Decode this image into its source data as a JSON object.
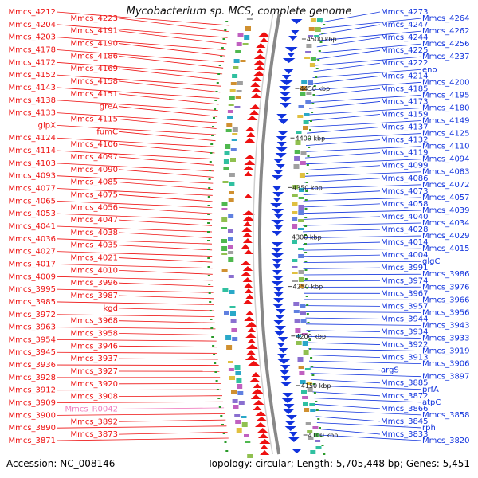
{
  "title": "Mycobacterium sp. MCS, complete genome",
  "footer": {
    "accession": "Accession: NC_008146",
    "topology": "Topology: circular; Length: 5,705,448 bp; Genes: 5,451"
  },
  "colors": {
    "forward": "#ee1111",
    "reverse": "#1133dd",
    "rna": "#f080c0",
    "backbone": "#888888",
    "tick": "#2a9a2a"
  },
  "scale_labels": [
    "4500 kbp",
    "4450 kbp",
    "4400 kbp",
    "4350 kbp",
    "4300 kbp",
    "4250 kbp",
    "4200 kbp",
    "4150 kbp",
    "4100 kbp"
  ],
  "left_labels": [
    {
      "text": "Mmcs_4212",
      "kind": "forward"
    },
    {
      "text": "Mmcs_4223",
      "kind": "forward"
    },
    {
      "text": "Mmcs_4204",
      "kind": "forward"
    },
    {
      "text": "Mmcs_4191",
      "kind": "forward"
    },
    {
      "text": "Mmcs_4203",
      "kind": "forward"
    },
    {
      "text": "Mmcs_4190",
      "kind": "forward"
    },
    {
      "text": "Mmcs_4178",
      "kind": "forward"
    },
    {
      "text": "Mmcs_4186",
      "kind": "forward"
    },
    {
      "text": "Mmcs_4172",
      "kind": "forward"
    },
    {
      "text": "Mmcs_4169",
      "kind": "forward"
    },
    {
      "text": "Mmcs_4152",
      "kind": "forward"
    },
    {
      "text": "Mmcs_4158",
      "kind": "forward"
    },
    {
      "text": "Mmcs_4143",
      "kind": "forward"
    },
    {
      "text": "Mmcs_4151",
      "kind": "forward"
    },
    {
      "text": "Mmcs_4138",
      "kind": "forward"
    },
    {
      "text": "greA",
      "kind": "forward"
    },
    {
      "text": "Mmcs_4133",
      "kind": "forward"
    },
    {
      "text": "Mmcs_4115",
      "kind": "forward"
    },
    {
      "text": "glpX",
      "kind": "forward"
    },
    {
      "text": "fumC",
      "kind": "forward"
    },
    {
      "text": "Mmcs_4124",
      "kind": "forward"
    },
    {
      "text": "Mmcs_4106",
      "kind": "forward"
    },
    {
      "text": "Mmcs_4114",
      "kind": "forward"
    },
    {
      "text": "Mmcs_4097",
      "kind": "forward"
    },
    {
      "text": "Mmcs_4103",
      "kind": "forward"
    },
    {
      "text": "Mmcs_4090",
      "kind": "forward"
    },
    {
      "text": "Mmcs_4093",
      "kind": "forward"
    },
    {
      "text": "Mmcs_4085",
      "kind": "forward"
    },
    {
      "text": "Mmcs_4077",
      "kind": "forward"
    },
    {
      "text": "Mmcs_4075",
      "kind": "forward"
    },
    {
      "text": "Mmcs_4065",
      "kind": "forward"
    },
    {
      "text": "Mmcs_4056",
      "kind": "forward"
    },
    {
      "text": "Mmcs_4053",
      "kind": "forward"
    },
    {
      "text": "Mmcs_4047",
      "kind": "forward"
    },
    {
      "text": "Mmcs_4041",
      "kind": "forward"
    },
    {
      "text": "Mmcs_4038",
      "kind": "forward"
    },
    {
      "text": "Mmcs_4036",
      "kind": "forward"
    },
    {
      "text": "Mmcs_4035",
      "kind": "forward"
    },
    {
      "text": "Mmcs_4027",
      "kind": "forward"
    },
    {
      "text": "Mmcs_4021",
      "kind": "forward"
    },
    {
      "text": "Mmcs_4017",
      "kind": "forward"
    },
    {
      "text": "Mmcs_4010",
      "kind": "forward"
    },
    {
      "text": "Mmcs_4009",
      "kind": "forward"
    },
    {
      "text": "Mmcs_3996",
      "kind": "forward"
    },
    {
      "text": "Mmcs_3995",
      "kind": "forward"
    },
    {
      "text": "Mmcs_3987",
      "kind": "forward"
    },
    {
      "text": "Mmcs_3985",
      "kind": "forward"
    },
    {
      "text": "kgd",
      "kind": "forward"
    },
    {
      "text": "Mmcs_3972",
      "kind": "forward"
    },
    {
      "text": "Mmcs_3968",
      "kind": "forward"
    },
    {
      "text": "Mmcs_3963",
      "kind": "forward"
    },
    {
      "text": "Mmcs_3958",
      "kind": "forward"
    },
    {
      "text": "Mmcs_3954",
      "kind": "forward"
    },
    {
      "text": "Mmcs_3946",
      "kind": "forward"
    },
    {
      "text": "Mmcs_3945",
      "kind": "forward"
    },
    {
      "text": "Mmcs_3937",
      "kind": "forward"
    },
    {
      "text": "Mmcs_3936",
      "kind": "forward"
    },
    {
      "text": "Mmcs_3927",
      "kind": "forward"
    },
    {
      "text": "Mmcs_3928",
      "kind": "forward"
    },
    {
      "text": "Mmcs_3920",
      "kind": "forward"
    },
    {
      "text": "Mmcs_3912",
      "kind": "forward"
    },
    {
      "text": "Mmcs_3908",
      "kind": "forward"
    },
    {
      "text": "Mmcs_3909",
      "kind": "forward"
    },
    {
      "text": "Mmcs_R0042",
      "kind": "rna"
    },
    {
      "text": "Mmcs_3900",
      "kind": "forward"
    },
    {
      "text": "Mmcs_3892",
      "kind": "forward"
    },
    {
      "text": "Mmcs_3890",
      "kind": "forward"
    },
    {
      "text": "Mmcs_3873",
      "kind": "forward"
    },
    {
      "text": "Mmcs_3871",
      "kind": "forward"
    }
  ],
  "right_labels": [
    {
      "text": "Mmcs_4273",
      "kind": "reverse"
    },
    {
      "text": "Mmcs_4264",
      "kind": "reverse"
    },
    {
      "text": "Mmcs_4247",
      "kind": "reverse"
    },
    {
      "text": "Mmcs_4262",
      "kind": "reverse"
    },
    {
      "text": "Mmcs_4244",
      "kind": "reverse"
    },
    {
      "text": "Mmcs_4256",
      "kind": "reverse"
    },
    {
      "text": "Mmcs_4225",
      "kind": "reverse"
    },
    {
      "text": "Mmcs_4237",
      "kind": "reverse"
    },
    {
      "text": "Mmcs_4222",
      "kind": "reverse"
    },
    {
      "text": "eno",
      "kind": "reverse"
    },
    {
      "text": "Mmcs_4214",
      "kind": "reverse"
    },
    {
      "text": "Mmcs_4200",
      "kind": "reverse"
    },
    {
      "text": "Mmcs_4185",
      "kind": "reverse"
    },
    {
      "text": "Mmcs_4195",
      "kind": "reverse"
    },
    {
      "text": "Mmcs_4173",
      "kind": "reverse"
    },
    {
      "text": "Mmcs_4180",
      "kind": "reverse"
    },
    {
      "text": "Mmcs_4159",
      "kind": "reverse"
    },
    {
      "text": "Mmcs_4149",
      "kind": "reverse"
    },
    {
      "text": "Mmcs_4137",
      "kind": "reverse"
    },
    {
      "text": "Mmcs_4125",
      "kind": "reverse"
    },
    {
      "text": "Mmcs_4132",
      "kind": "reverse"
    },
    {
      "text": "Mmcs_4110",
      "kind": "reverse"
    },
    {
      "text": "Mmcs_4119",
      "kind": "reverse"
    },
    {
      "text": "Mmcs_4094",
      "kind": "reverse"
    },
    {
      "text": "Mmcs_4099",
      "kind": "reverse"
    },
    {
      "text": "Mmcs_4083",
      "kind": "reverse"
    },
    {
      "text": "Mmcs_4086",
      "kind": "reverse"
    },
    {
      "text": "Mmcs_4072",
      "kind": "reverse"
    },
    {
      "text": "Mmcs_4073",
      "kind": "reverse"
    },
    {
      "text": "Mmcs_4057",
      "kind": "reverse"
    },
    {
      "text": "Mmcs_4058",
      "kind": "reverse"
    },
    {
      "text": "Mmcs_4039",
      "kind": "reverse"
    },
    {
      "text": "Mmcs_4040",
      "kind": "reverse"
    },
    {
      "text": "Mmcs_4034",
      "kind": "reverse"
    },
    {
      "text": "Mmcs_4028",
      "kind": "reverse"
    },
    {
      "text": "Mmcs_4029",
      "kind": "reverse"
    },
    {
      "text": "Mmcs_4014",
      "kind": "reverse"
    },
    {
      "text": "Mmcs_4015",
      "kind": "reverse"
    },
    {
      "text": "Mmcs_4004",
      "kind": "reverse"
    },
    {
      "text": "glgC",
      "kind": "reverse"
    },
    {
      "text": "Mmcs_3991",
      "kind": "reverse"
    },
    {
      "text": "Mmcs_3986",
      "kind": "reverse"
    },
    {
      "text": "Mmcs_3974",
      "kind": "reverse"
    },
    {
      "text": "Mmcs_3976",
      "kind": "reverse"
    },
    {
      "text": "Mmcs_3967",
      "kind": "reverse"
    },
    {
      "text": "Mmcs_3966",
      "kind": "reverse"
    },
    {
      "text": "Mmcs_3957",
      "kind": "reverse"
    },
    {
      "text": "Mmcs_3956",
      "kind": "reverse"
    },
    {
      "text": "Mmcs_3944",
      "kind": "reverse"
    },
    {
      "text": "Mmcs_3943",
      "kind": "reverse"
    },
    {
      "text": "Mmcs_3934",
      "kind": "reverse"
    },
    {
      "text": "Mmcs_3933",
      "kind": "reverse"
    },
    {
      "text": "Mmcs_3922",
      "kind": "reverse"
    },
    {
      "text": "Mmcs_3919",
      "kind": "reverse"
    },
    {
      "text": "Mmcs_3913",
      "kind": "reverse"
    },
    {
      "text": "Mmcs_3906",
      "kind": "reverse"
    },
    {
      "text": "argS",
      "kind": "reverse"
    },
    {
      "text": "Mmcs_3897",
      "kind": "reverse"
    },
    {
      "text": "Mmcs_3885",
      "kind": "reverse"
    },
    {
      "text": "prfA",
      "kind": "reverse"
    },
    {
      "text": "Mmcs_3872",
      "kind": "reverse"
    },
    {
      "text": "atpC",
      "kind": "reverse"
    },
    {
      "text": "Mmcs_3866",
      "kind": "reverse"
    },
    {
      "text": "Mmcs_3858",
      "kind": "reverse"
    },
    {
      "text": "Mmcs_3845",
      "kind": "reverse"
    },
    {
      "text": "rph",
      "kind": "reverse"
    },
    {
      "text": "Mmcs_3833",
      "kind": "reverse"
    },
    {
      "text": "Mmcs_3820",
      "kind": "reverse"
    }
  ]
}
